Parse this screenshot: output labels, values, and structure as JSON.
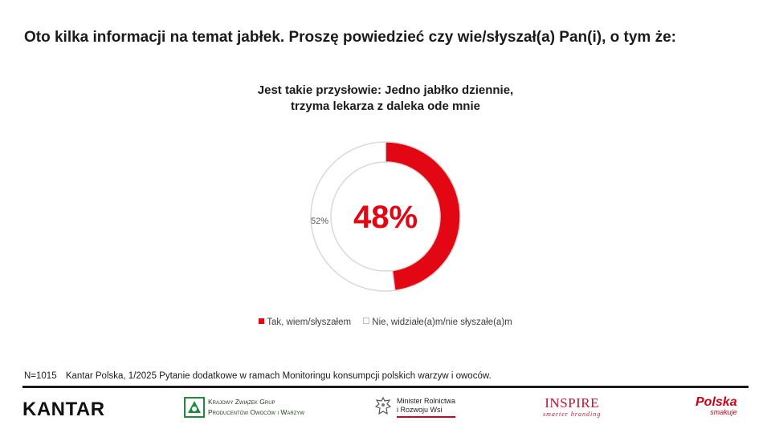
{
  "page": {
    "heading": "Oto kilka informacji na temat jabłek. Proszę powiedzieć czy wie/słyszał(a) Pan(i), o tym że:",
    "footnote_n": "N=1015",
    "footnote_text": "Kantar Polska, 1/2025 Pytanie dodatkowe w ramach Monitoringu konsumpcji polskich warzyw i owoców."
  },
  "logos": {
    "kantar": "KANTAR",
    "kzgp_line1": "Krajowy Związek Grup",
    "kzgp_line2": "Producentów Owoców i Warzyw",
    "ministry_line1": "Minister Rolnictwa",
    "ministry_line2": "i Rozwoju Wsi",
    "inspire": "INSPIRE",
    "inspire_tagline": "smarter branding",
    "polska": "Polska",
    "polska_tagline": "smakuje"
  },
  "colors": {
    "accent": "#e30613",
    "empty": "#d9d9d9",
    "text": "#1a1a1a"
  },
  "chart_data": {
    "type": "pie",
    "variant": "donut",
    "title_line1": "Jest takie przysłowie: Jedno jabłko dziennie,",
    "title_line2": "trzyma lekarza z daleka ode mnie",
    "center_label": "48%",
    "legend_position": "bottom",
    "categories": [
      "Tak, wiem/słyszałem",
      "Nie, widziałe(a)m/nie słyszałe(a)m"
    ],
    "values": [
      48,
      52
    ],
    "data_labels": [
      "48%",
      "52%"
    ],
    "colors": [
      "#e30613",
      "#ffffff"
    ]
  }
}
